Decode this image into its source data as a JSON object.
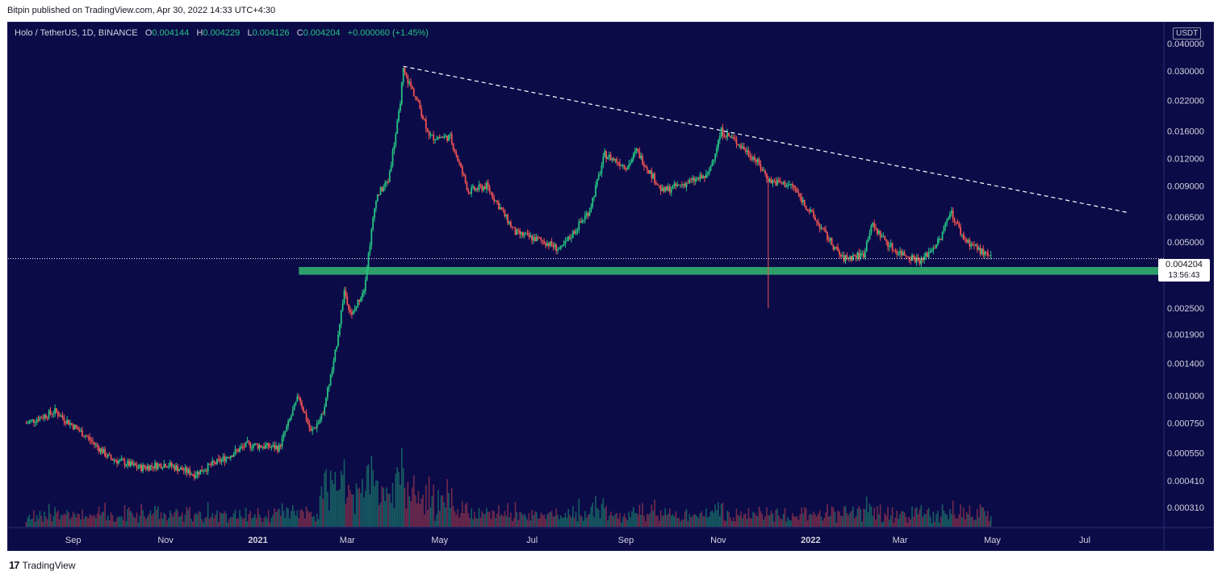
{
  "publisher_line": "Bitpin published on TradingView.com, Apr 30, 2022 14:33 UTC+4:30",
  "footer_brand": "TradingView",
  "colors": {
    "background": "#0b0b48",
    "up": "#26c281",
    "down": "#ef5350",
    "support_zone": "#2e9e6b",
    "text": "#d1d4dc"
  },
  "chart_data": {
    "type": "candlestick",
    "symbol": "Holo / TetherUS, 1D, BINANCE",
    "ohlc": {
      "open_label": "O",
      "open": "0.004144",
      "high_label": "H",
      "high": "0.004229",
      "low_label": "L",
      "low": "0.004126",
      "close_label": "C",
      "close": "0.004204",
      "change": "+0.000060 (+1.45%)"
    },
    "currency": "USDT",
    "y_scale": "log",
    "y_ticks": [
      "0.040000",
      "0.030000",
      "0.022000",
      "0.016000",
      "0.012000",
      "0.009000",
      "0.006500",
      "0.005000",
      "0.002500",
      "0.001900",
      "0.001400",
      "0.001000",
      "0.000750",
      "0.000550",
      "0.000410",
      "0.000310"
    ],
    "x_ticks": [
      "Sep",
      "Nov",
      "2021",
      "Mar",
      "May",
      "Jul",
      "Sep",
      "Nov",
      "2022",
      "Mar",
      "May",
      "Jul"
    ],
    "last_price": "0.004204",
    "countdown": "13:56:43",
    "price_path": [
      [
        "2020-08-01",
        0.00075
      ],
      [
        "2020-08-20",
        0.00085
      ],
      [
        "2020-09-10",
        0.00065
      ],
      [
        "2020-09-25",
        0.00052
      ],
      [
        "2020-10-15",
        0.00047
      ],
      [
        "2020-11-01",
        0.00049
      ],
      [
        "2020-11-20",
        0.00044
      ],
      [
        "2020-12-10",
        0.00052
      ],
      [
        "2020-12-25",
        0.0006
      ],
      [
        "2021-01-15",
        0.00058
      ],
      [
        "2021-01-28",
        0.001
      ],
      [
        "2021-02-05",
        0.00068
      ],
      [
        "2021-02-12",
        0.0008
      ],
      [
        "2021-02-20",
        0.0014
      ],
      [
        "2021-02-27",
        0.003
      ],
      [
        "2021-03-04",
        0.0023
      ],
      [
        "2021-03-12",
        0.0031
      ],
      [
        "2021-03-20",
        0.008
      ],
      [
        "2021-03-28",
        0.0095
      ],
      [
        "2021-04-04",
        0.019
      ],
      [
        "2021-04-07",
        0.03
      ],
      [
        "2021-04-15",
        0.023
      ],
      [
        "2021-04-25",
        0.015
      ],
      [
        "2021-05-08",
        0.015
      ],
      [
        "2021-05-20",
        0.0085
      ],
      [
        "2021-06-01",
        0.009
      ],
      [
        "2021-06-20",
        0.0055
      ],
      [
        "2021-07-10",
        0.005
      ],
      [
        "2021-07-20",
        0.0046
      ],
      [
        "2021-08-08",
        0.007
      ],
      [
        "2021-08-18",
        0.0125
      ],
      [
        "2021-09-02",
        0.011
      ],
      [
        "2021-09-08",
        0.013
      ],
      [
        "2021-09-25",
        0.0085
      ],
      [
        "2021-10-15",
        0.0095
      ],
      [
        "2021-10-25",
        0.01
      ],
      [
        "2021-11-03",
        0.016
      ],
      [
        "2021-11-12",
        0.0145
      ],
      [
        "2021-11-25",
        0.012
      ],
      [
        "2021-12-05",
        0.0095
      ],
      [
        "2021-12-20",
        0.009
      ],
      [
        "2022-01-10",
        0.0055
      ],
      [
        "2022-01-22",
        0.0042
      ],
      [
        "2022-02-05",
        0.0044
      ],
      [
        "2022-02-10",
        0.006
      ],
      [
        "2022-02-25",
        0.0046
      ],
      [
        "2022-03-15",
        0.0041
      ],
      [
        "2022-03-28",
        0.0052
      ],
      [
        "2022-04-03",
        0.007
      ],
      [
        "2022-04-12",
        0.0052
      ],
      [
        "2022-04-30",
        0.004204
      ]
    ],
    "wick_spike": {
      "date": "2021-12-04",
      "low": 0.0025
    },
    "trendline": {
      "start": [
        "2021-04-07",
        0.0315
      ],
      "end": [
        "2022-07-30",
        0.0068
      ],
      "style": "dashed"
    },
    "support_zone": {
      "start": "2021-01-28",
      "low": 0.00355,
      "high": 0.00385
    }
  }
}
